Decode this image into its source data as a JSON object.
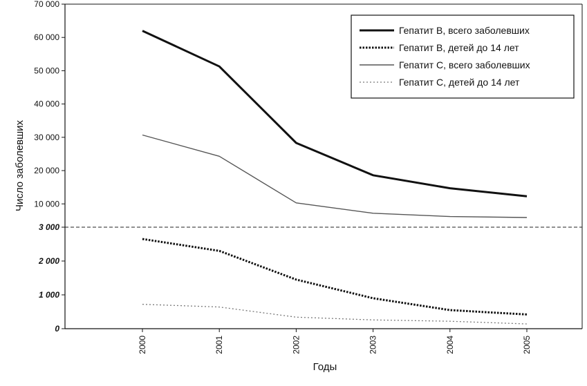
{
  "chart_data": {
    "type": "line",
    "xlabel": "Годы",
    "ylabel": "Число заболевших",
    "x": [
      "2000",
      "2001",
      "2002",
      "2003",
      "2004",
      "2005"
    ],
    "y_axis": {
      "note": "broken axis: lower segment 0–3 000, upper segment 3 000–70 000",
      "lower_range": [
        0,
        3000
      ],
      "upper_range": [
        3000,
        70000
      ],
      "lower_ticks": [
        "0",
        "1 000",
        "2 000",
        "3 000"
      ],
      "upper_ticks": [
        "10 000",
        "20 000",
        "30 000",
        "40 000",
        "50 000",
        "60 000",
        "70 000"
      ]
    },
    "legend_position": "top-right",
    "series": [
      {
        "name": "Гепатит B, всего заболевших",
        "values": [
          62000,
          51300,
          28300,
          18600,
          14700,
          12300
        ],
        "style": "thick-solid",
        "color": "#111111"
      },
      {
        "name": "Гепатит B, детей до 14 лет",
        "values": [
          2650,
          2300,
          1450,
          900,
          550,
          420
        ],
        "style": "dotted",
        "color": "#111111"
      },
      {
        "name": "Гепатит C, всего заболевших",
        "values": [
          30700,
          24300,
          10300,
          7200,
          6200,
          5900
        ],
        "style": "thin-solid",
        "color": "#555555"
      },
      {
        "name": "Гепатит C, детей до 14 лет",
        "values": [
          720,
          640,
          340,
          260,
          220,
          140
        ],
        "style": "fine-dotted",
        "color": "#777777"
      }
    ]
  }
}
